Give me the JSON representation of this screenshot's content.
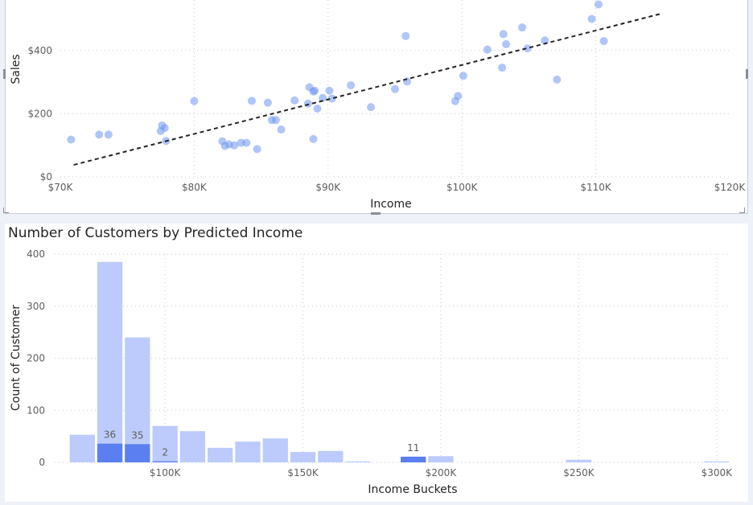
{
  "chart_data": [
    {
      "type": "scatter",
      "title": "",
      "xlabel": "Income",
      "ylabel": "Sales",
      "xlim": [
        70000,
        120000
      ],
      "ylim": [
        0,
        560
      ],
      "x_ticks": [
        70000,
        80000,
        90000,
        100000,
        110000,
        120000
      ],
      "x_tick_labels": [
        "$70K",
        "$80K",
        "$90K",
        "$100K",
        "$110K",
        "$120K"
      ],
      "y_ticks": [
        0,
        200,
        400
      ],
      "y_tick_labels": [
        "$0",
        "$200",
        "$400"
      ],
      "grid": true,
      "trendline": {
        "style": "dashed",
        "color": "#252423",
        "from": [
          71000,
          38
        ],
        "to": [
          115000,
          518
        ]
      },
      "point_color": "#6f95f2",
      "points": [
        [
          70800,
          118
        ],
        [
          72900,
          134
        ],
        [
          73600,
          134
        ],
        [
          77500,
          145
        ],
        [
          77600,
          163
        ],
        [
          77800,
          155
        ],
        [
          77900,
          114
        ],
        [
          80000,
          240
        ],
        [
          82100,
          113
        ],
        [
          82300,
          98
        ],
        [
          82600,
          103
        ],
        [
          83000,
          100
        ],
        [
          83500,
          108
        ],
        [
          83900,
          108
        ],
        [
          84300,
          241
        ],
        [
          84700,
          88
        ],
        [
          85500,
          235
        ],
        [
          85800,
          180
        ],
        [
          86100,
          180
        ],
        [
          86500,
          150
        ],
        [
          87500,
          242
        ],
        [
          88500,
          232
        ],
        [
          88600,
          284
        ],
        [
          88900,
          270
        ],
        [
          89000,
          273
        ],
        [
          88900,
          120
        ],
        [
          89200,
          216
        ],
        [
          89600,
          250
        ],
        [
          90100,
          273
        ],
        [
          90300,
          248
        ],
        [
          91700,
          290
        ],
        [
          93200,
          221
        ],
        [
          95000,
          278
        ],
        [
          95800,
          446
        ],
        [
          95900,
          302
        ],
        [
          99500,
          240
        ],
        [
          99700,
          256
        ],
        [
          100100,
          320
        ],
        [
          101900,
          403
        ],
        [
          103000,
          346
        ],
        [
          103100,
          452
        ],
        [
          103300,
          420
        ],
        [
          104500,
          473
        ],
        [
          104900,
          407
        ],
        [
          106200,
          432
        ],
        [
          107100,
          308
        ],
        [
          109700,
          500
        ],
        [
          110200,
          546
        ],
        [
          110600,
          430
        ]
      ]
    },
    {
      "type": "bar",
      "title": "Number of Customers by Predicted Income",
      "xlabel": "Income Buckets",
      "ylabel": "Count of Customer",
      "xlim": [
        60000,
        305000
      ],
      "ylim": [
        0,
        400
      ],
      "x_ticks": [
        100000,
        150000,
        200000,
        250000,
        300000
      ],
      "x_tick_labels": [
        "$100K",
        "$150K",
        "$200K",
        "$250K",
        "$300K"
      ],
      "y_ticks": [
        0,
        100,
        200,
        300,
        400
      ],
      "y_tick_labels": [
        "0",
        "100",
        "200",
        "300",
        "400"
      ],
      "grid": true,
      "colors": {
        "total": "#bccbfb",
        "highlight": "#5b7ff0"
      },
      "bucket_width": 10000,
      "buckets": [
        70000,
        80000,
        90000,
        100000,
        110000,
        120000,
        130000,
        140000,
        150000,
        160000,
        170000,
        180000,
        190000,
        200000,
        250000,
        300000
      ],
      "series": [
        {
          "values": [
            53,
            385,
            240,
            70,
            60,
            28,
            40,
            46,
            20,
            22,
            2,
            0,
            0,
            12,
            5,
            2
          ]
        },
        {
          "values": [
            0,
            36,
            35,
            2,
            0,
            0,
            0,
            0,
            0,
            0,
            0,
            0,
            11,
            0,
            0,
            0
          ]
        }
      ],
      "data_labels": [
        {
          "bucket": 80000,
          "text": "36"
        },
        {
          "bucket": 90000,
          "text": "35"
        },
        {
          "bucket": 100000,
          "text": "2"
        },
        {
          "bucket": 190000,
          "text": "11"
        }
      ]
    }
  ]
}
